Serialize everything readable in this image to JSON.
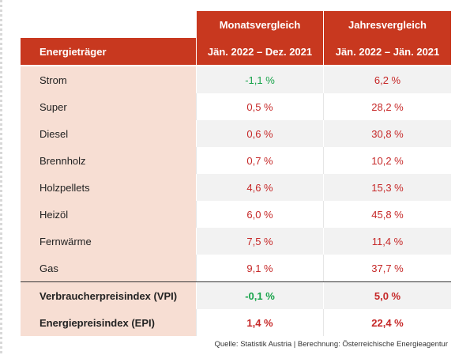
{
  "header": {
    "col_month": "Monatsvergleich",
    "col_year": "Jahresvergleich",
    "col_label": "Energieträger",
    "month_range": "Jän. 2022 – Dez. 2021",
    "year_range": "Jän. 2022 – Jän. 2021"
  },
  "rows": [
    {
      "label": "Strom",
      "month": "-1,1 %",
      "year": "6,2 %"
    },
    {
      "label": "Super",
      "month": "0,5 %",
      "year": "28,2 %"
    },
    {
      "label": "Diesel",
      "month": "0,6 %",
      "year": "30,8 %"
    },
    {
      "label": "Brennholz",
      "month": "0,7 %",
      "year": "10,2 %"
    },
    {
      "label": "Holzpellets",
      "month": "4,6 %",
      "year": "15,3 %"
    },
    {
      "label": "Heizöl",
      "month": "6,0 %",
      "year": "45,8 %"
    },
    {
      "label": "Fernwärme",
      "month": "7,5 %",
      "year": "11,4 %"
    },
    {
      "label": "Gas",
      "month": "9,1 %",
      "year": "37,7 %"
    }
  ],
  "summary": [
    {
      "label": "Verbraucherpreisindex (VPI)",
      "month": "-0,1 %",
      "year": "5,0 %"
    },
    {
      "label": "Energiepreisindex (EPI)",
      "month": "1,4 %",
      "year": "22,4 %"
    }
  ],
  "source": "Quelle: Statistik Austria | Berechnung: Österreichische Energieagentur",
  "colors": {
    "header_bg": "#c8381f",
    "label_bg": "#f7ded3",
    "positive": "#c62828",
    "negative": "#17a34a"
  }
}
